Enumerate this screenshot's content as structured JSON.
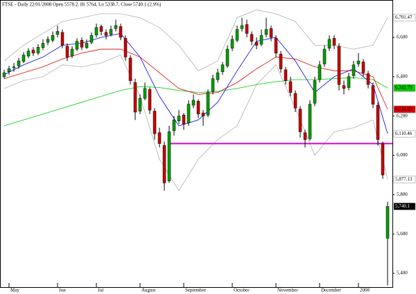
{
  "chart_data": {
    "type": "candlestick",
    "title": "FTSE - Daily 22/01/2008 Open 5578.2, Hi 5764, Lo 5338.7, Close 5740.1 (2.9%)",
    "ylim": [
      5330,
      6790
    ],
    "yticks": [
      {
        "value": 5400,
        "label": "5,400"
      },
      {
        "value": 5600,
        "label": "5,600"
      },
      {
        "value": 5800,
        "label": "5,800"
      },
      {
        "value": 6000,
        "label": "6,000"
      },
      {
        "value": 6200,
        "label": "6,200"
      },
      {
        "value": 6400,
        "label": "6,400"
      },
      {
        "value": 6600,
        "label": "6,600"
      }
    ],
    "month_ticks": [
      {
        "label": "May",
        "index": 1
      },
      {
        "label": "Jun",
        "index": 11
      },
      {
        "label": "Jul",
        "index": 19
      },
      {
        "label": "August",
        "index": 28
      },
      {
        "label": "September",
        "index": 37
      },
      {
        "label": "October",
        "index": 47
      },
      {
        "label": "November",
        "index": 56
      },
      {
        "label": "December",
        "index": 65
      },
      {
        "label": "2008",
        "index": 73
      }
    ],
    "up_color": "#00a000",
    "down_color": "#cc0000",
    "candles": [
      [
        6400,
        6435,
        6390,
        6420
      ],
      [
        6425,
        6455,
        6410,
        6440
      ],
      [
        6445,
        6470,
        6425,
        6450
      ],
      [
        6455,
        6495,
        6440,
        6480
      ],
      [
        6478,
        6525,
        6470,
        6510
      ],
      [
        6505,
        6545,
        6495,
        6530
      ],
      [
        6535,
        6550,
        6505,
        6520
      ],
      [
        6520,
        6565,
        6510,
        6550
      ],
      [
        6548,
        6590,
        6535,
        6570
      ],
      [
        6575,
        6605,
        6560,
        6590
      ],
      [
        6585,
        6630,
        6575,
        6610
      ],
      [
        6615,
        6660,
        6600,
        6630
      ],
      [
        6625,
        6640,
        6545,
        6560
      ],
      [
        6555,
        6570,
        6480,
        6500
      ],
      [
        6505,
        6555,
        6495,
        6540
      ],
      [
        6540,
        6595,
        6530,
        6580
      ],
      [
        6585,
        6600,
        6535,
        6550
      ],
      [
        6548,
        6590,
        6540,
        6570
      ],
      [
        6575,
        6625,
        6565,
        6610
      ],
      [
        6612,
        6670,
        6600,
        6650
      ],
      [
        6655,
        6665,
        6610,
        6630
      ],
      [
        6625,
        6640,
        6590,
        6610
      ],
      [
        6615,
        6660,
        6605,
        6640
      ],
      [
        6645,
        6690,
        6630,
        6660
      ],
      [
        6655,
        6670,
        6585,
        6600
      ],
      [
        6595,
        6610,
        6480,
        6500
      ],
      [
        6495,
        6510,
        6360,
        6380
      ],
      [
        6370,
        6390,
        6180,
        6220
      ],
      [
        6225,
        6310,
        6210,
        6290
      ],
      [
        6290,
        6370,
        6280,
        6340
      ],
      [
        6335,
        6345,
        6210,
        6230
      ],
      [
        6225,
        6240,
        6080,
        6110
      ],
      [
        6115,
        6140,
        6040,
        6060
      ],
      [
        6050,
        6070,
        5820,
        5860
      ],
      [
        5870,
        6150,
        5860,
        6120
      ],
      [
        6125,
        6200,
        6100,
        6180
      ],
      [
        6175,
        6230,
        6160,
        6200
      ],
      [
        6205,
        6215,
        6130,
        6160
      ],
      [
        6165,
        6280,
        6150,
        6260
      ],
      [
        6255,
        6310,
        6240,
        6280
      ],
      [
        6275,
        6285,
        6190,
        6210
      ],
      [
        6215,
        6230,
        6150,
        6200
      ],
      [
        6205,
        6335,
        6195,
        6320
      ],
      [
        6325,
        6410,
        6310,
        6390
      ],
      [
        6385,
        6440,
        6370,
        6420
      ],
      [
        6425,
        6475,
        6410,
        6460
      ],
      [
        6455,
        6560,
        6445,
        6540
      ],
      [
        6545,
        6610,
        6530,
        6590
      ],
      [
        6585,
        6660,
        6575,
        6640
      ],
      [
        6645,
        6700,
        6630,
        6660
      ],
      [
        6665,
        6690,
        6600,
        6620
      ],
      [
        6615,
        6630,
        6560,
        6580
      ],
      [
        6575,
        6600,
        6540,
        6560
      ],
      [
        6565,
        6640,
        6555,
        6610
      ],
      [
        6615,
        6700,
        6600,
        6640
      ],
      [
        6645,
        6660,
        6580,
        6600
      ],
      [
        6595,
        6610,
        6500,
        6520
      ],
      [
        6515,
        6530,
        6420,
        6440
      ],
      [
        6435,
        6450,
        6360,
        6380
      ],
      [
        6375,
        6400,
        6300,
        6320
      ],
      [
        6315,
        6330,
        6220,
        6240
      ],
      [
        6235,
        6250,
        6090,
        6120
      ],
      [
        6115,
        6130,
        6040,
        6080
      ],
      [
        6085,
        6280,
        6075,
        6260
      ],
      [
        6265,
        6400,
        6250,
        6380
      ],
      [
        6385,
        6480,
        6370,
        6460
      ],
      [
        6465,
        6560,
        6450,
        6540
      ],
      [
        6545,
        6610,
        6530,
        6590
      ],
      [
        6595,
        6610,
        6540,
        6560
      ],
      [
        6555,
        6570,
        6330,
        6360
      ],
      [
        6355,
        6380,
        6310,
        6340
      ],
      [
        6345,
        6420,
        6330,
        6400
      ],
      [
        6405,
        6480,
        6390,
        6460
      ],
      [
        6465,
        6520,
        6450,
        6480
      ],
      [
        6475,
        6490,
        6400,
        6420
      ],
      [
        6415,
        6430,
        6340,
        6360
      ],
      [
        6355,
        6370,
        6240,
        6260
      ],
      [
        6255,
        6270,
        6050,
        6080
      ],
      [
        6060,
        6070,
        5880,
        5900
      ],
      [
        5578.2,
        5764,
        5338.7,
        5740.1
      ]
    ],
    "overlay_x": [
      0,
      4,
      8,
      12,
      16,
      20,
      24,
      28,
      32,
      36,
      40,
      44,
      48,
      52,
      56,
      60,
      64,
      68,
      72,
      76,
      79
    ],
    "overlays": [
      {
        "color": "#b0b0b0",
        "values": [
          6480,
          6560,
          6620,
          6680,
          6700,
          6720,
          6720,
          6700,
          6650,
          6560,
          6430,
          6480,
          6700,
          6740,
          6720,
          6680,
          6560,
          6560,
          6540,
          6560,
          6701.47
        ],
        "end_label": {
          "value": 6701.47,
          "label": "6,701.47"
        },
        "label_bg": "#ffffff",
        "label_fg": "#000000"
      },
      {
        "color": "#b0b0b0",
        "values": [
          6340,
          6380,
          6400,
          6460,
          6450,
          6470,
          6510,
          6300,
          5980,
          5820,
          5980,
          6080,
          6150,
          6360,
          6460,
          6240,
          6000,
          6120,
          6140,
          6180,
          5877.13
        ],
        "end_label": {
          "value": 5877.13,
          "label": "5,877.13"
        },
        "label_bg": "#ffffff",
        "label_fg": "#000000"
      },
      {
        "color": "#00cc00",
        "values": [
          6150,
          6180,
          6210,
          6240,
          6270,
          6300,
          6330,
          6350,
          6345,
          6330,
          6320,
          6325,
          6340,
          6360,
          6375,
          6385,
          6385,
          6390,
          6395,
          6385,
          6342.79
        ],
        "end_label": {
          "value": 6342.79,
          "label": "6,342.79"
        },
        "label_bg": "#00cc00",
        "label_fg": "#000000"
      },
      {
        "color": "#dd0000",
        "values": [
          6390,
          6420,
          6450,
          6490,
          6520,
          6540,
          6540,
          6500,
          6420,
          6340,
          6310,
          6320,
          6370,
          6440,
          6500,
          6490,
          6450,
          6430,
          6430,
          6400,
          6234.09
        ],
        "end_label": {
          "value": 6234.09,
          "label": "6,234.09"
        },
        "label_bg": "#dd0000",
        "label_fg": "#000000"
      },
      {
        "color": "#0000dd",
        "values": [
          6410,
          6460,
          6500,
          6560,
          6570,
          6600,
          6620,
          6500,
          6300,
          6150,
          6180,
          6270,
          6430,
          6580,
          6600,
          6480,
          6320,
          6400,
          6440,
          6360,
          6110.46
        ],
        "end_label": {
          "value": 6110.46,
          "label": "6,110.46"
        },
        "label_bg": "#ffffff",
        "label_fg": "#000000"
      }
    ],
    "hline": {
      "value": 6060,
      "from_index": 34,
      "color": "#cc00cc"
    },
    "last_label": {
      "value": 5740.1,
      "label": "5,740.1"
    }
  }
}
